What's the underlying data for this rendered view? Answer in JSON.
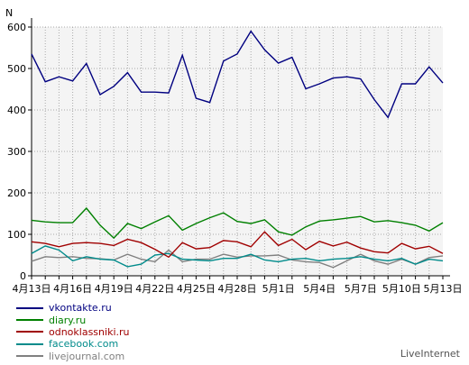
{
  "chart_data": {
    "type": "line",
    "ylabel": "N",
    "ylim": [
      0,
      600
    ],
    "yticks": [
      0,
      100,
      200,
      300,
      400,
      500,
      600
    ],
    "x": [
      "4月13日",
      "4月14日",
      "4月15日",
      "4月16日",
      "4月17日",
      "4月18日",
      "4月19日",
      "4月20日",
      "4月21日",
      "4月22日",
      "4月23日",
      "4月24日",
      "4月25日",
      "4月26日",
      "4月27日",
      "4月28日",
      "4月29日",
      "4月30日",
      "5月1日",
      "5月2日",
      "5月3日",
      "5月4日",
      "5月5日",
      "5月6日",
      "5月7日",
      "5月8日",
      "5月9日",
      "5月10日",
      "5月11日",
      "5月12日",
      "5月13日"
    ],
    "xtick_labels": [
      "4月13日",
      "4月16日",
      "4月19日",
      "4月22日",
      "4月25日",
      "4月28日",
      "5月1日",
      "5月4日",
      "5月7日",
      "5月10日",
      "5月13日"
    ],
    "grid": true,
    "legend_position": "bottom-left",
    "series": [
      {
        "name": "vkontakte.ru",
        "color": "#000080",
        "values": [
          535,
          468,
          480,
          470,
          512,
          437,
          457,
          490,
          443,
          443,
          441,
          532,
          428,
          418,
          518,
          535,
          590,
          545,
          513,
          527,
          451,
          463,
          477,
          480,
          475,
          425,
          382,
          463,
          463,
          504,
          465
        ]
      },
      {
        "name": "diary.ru",
        "color": "#008000",
        "values": [
          134,
          130,
          128,
          128,
          163,
          122,
          91,
          126,
          114,
          130,
          145,
          110,
          126,
          140,
          152,
          131,
          126,
          135,
          106,
          98,
          118,
          132,
          135,
          139,
          143,
          130,
          133,
          128,
          122,
          108,
          128
        ]
      },
      {
        "name": "odnoklassniki.ru",
        "color": "#a00000",
        "values": [
          82,
          78,
          70,
          78,
          80,
          78,
          73,
          88,
          80,
          64,
          45,
          80,
          65,
          68,
          85,
          82,
          70,
          106,
          73,
          88,
          63,
          83,
          72,
          81,
          67,
          58,
          55,
          78,
          65,
          71,
          54
        ]
      },
      {
        "name": "facebook.com",
        "color": "#008b8b",
        "values": [
          54,
          72,
          62,
          36,
          46,
          40,
          38,
          22,
          28,
          50,
          54,
          40,
          38,
          36,
          42,
          42,
          52,
          38,
          34,
          40,
          42,
          36,
          40,
          42,
          46,
          40,
          36,
          42,
          28,
          40,
          36
        ]
      },
      {
        "name": "livejournal.com",
        "color": "#808080",
        "values": [
          35,
          46,
          44,
          46,
          42,
          41,
          38,
          52,
          40,
          34,
          62,
          34,
          40,
          40,
          52,
          45,
          48,
          48,
          50,
          38,
          34,
          32,
          20,
          36,
          52,
          36,
          28,
          40,
          28,
          44,
          48
        ]
      }
    ]
  },
  "footer": {
    "brand": "LiveInternet"
  }
}
